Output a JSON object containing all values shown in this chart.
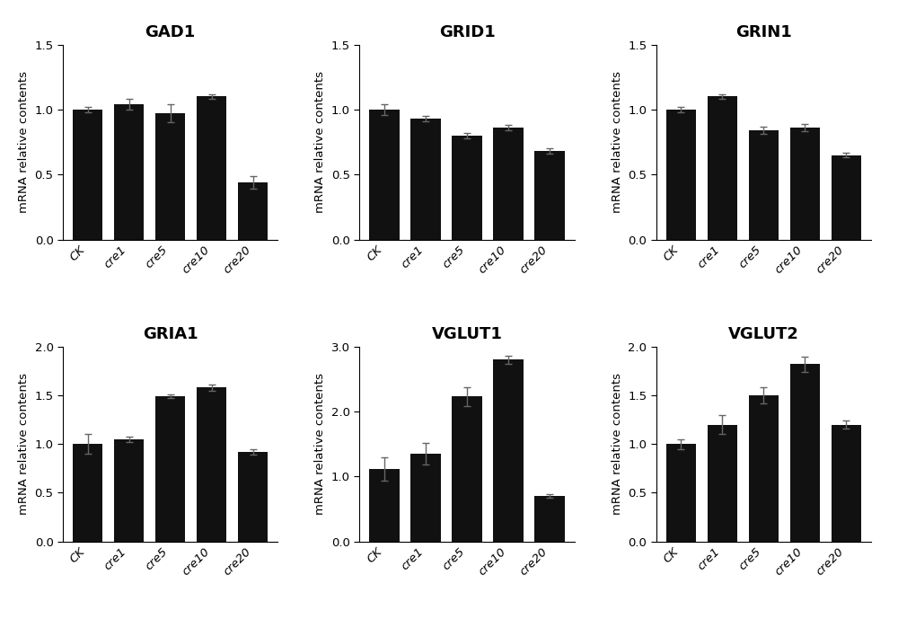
{
  "subplots": [
    {
      "title": "GAD1",
      "categories": [
        "CK",
        "cre1",
        "cre5",
        "cre10",
        "cre20"
      ],
      "values": [
        1.0,
        1.04,
        0.97,
        1.1,
        0.44
      ],
      "errors": [
        0.02,
        0.04,
        0.07,
        0.02,
        0.05
      ],
      "ylim": [
        0,
        1.5
      ],
      "yticks": [
        0.0,
        0.5,
        1.0,
        1.5
      ]
    },
    {
      "title": "GRID1",
      "categories": [
        "CK",
        "cre1",
        "cre5",
        "cre10",
        "cre20"
      ],
      "values": [
        1.0,
        0.93,
        0.8,
        0.86,
        0.68
      ],
      "errors": [
        0.04,
        0.02,
        0.02,
        0.02,
        0.02
      ],
      "ylim": [
        0,
        1.5
      ],
      "yticks": [
        0.0,
        0.5,
        1.0,
        1.5
      ]
    },
    {
      "title": "GRIN1",
      "categories": [
        "CK",
        "cre1",
        "cre5",
        "cre10",
        "cre20"
      ],
      "values": [
        1.0,
        1.1,
        0.84,
        0.86,
        0.65
      ],
      "errors": [
        0.02,
        0.02,
        0.03,
        0.03,
        0.02
      ],
      "ylim": [
        0,
        1.5
      ],
      "yticks": [
        0.0,
        0.5,
        1.0,
        1.5
      ]
    },
    {
      "title": "GRIA1",
      "categories": [
        "CK",
        "cre1",
        "cre5",
        "cre10",
        "cre20"
      ],
      "values": [
        1.0,
        1.05,
        1.49,
        1.58,
        0.92
      ],
      "errors": [
        0.1,
        0.03,
        0.02,
        0.03,
        0.03
      ],
      "ylim": [
        0,
        2.0
      ],
      "yticks": [
        0.0,
        0.5,
        1.0,
        1.5,
        2.0
      ]
    },
    {
      "title": "VGLUT1",
      "categories": [
        "CK",
        "cre1",
        "cre5",
        "cre10",
        "cre20"
      ],
      "values": [
        1.12,
        1.35,
        2.23,
        2.8,
        0.7
      ],
      "errors": [
        0.18,
        0.16,
        0.15,
        0.06,
        0.03
      ],
      "ylim": [
        0,
        3.0
      ],
      "yticks": [
        0,
        1,
        2,
        3
      ]
    },
    {
      "title": "VGLUT2",
      "categories": [
        "CK",
        "cre1",
        "cre5",
        "cre10",
        "cre20"
      ],
      "values": [
        1.0,
        1.2,
        1.5,
        1.82,
        1.2
      ],
      "errors": [
        0.05,
        0.1,
        0.08,
        0.08,
        0.04
      ],
      "ylim": [
        0,
        2.0
      ],
      "yticks": [
        0.0,
        0.5,
        1.0,
        1.5,
        2.0
      ]
    }
  ],
  "bar_color": "#111111",
  "bar_width": 0.72,
  "ylabel": "mRNA relative contents",
  "background_color": "#ffffff",
  "title_fontsize": 13,
  "label_fontsize": 9.5,
  "tick_fontsize": 9.5,
  "capsize": 3,
  "ecolor": "#666666",
  "elinewidth": 1.0
}
